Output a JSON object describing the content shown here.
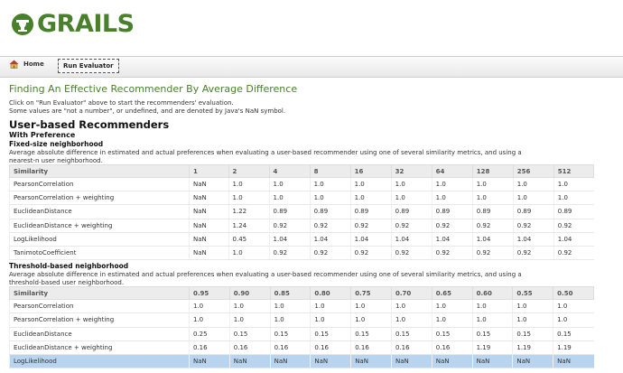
{
  "logo": {
    "text": "GRAILS"
  },
  "nav": {
    "home": "Home",
    "run_evaluator": "Run Evaluator"
  },
  "page": {
    "title": "Finding An Effective Recommender By Average Difference",
    "intro_1": "Click on \"Run Evaluator\" above to start the recommenders' evaluation.",
    "intro_2": "Some values are \"not a number\", or undefined, and are denoted by Java's NaN symbol.",
    "section_title": "User-based Recommenders",
    "subsection_title": "With Preference"
  },
  "fixed": {
    "title": "Fixed-size neighborhood",
    "desc_1": "Average absolute difference in estimated and actual preferences when evaluating a user-based recommender using one of several similarity metrics, and using a",
    "desc_2": "nearest-n user neighborhood.",
    "headers": [
      "Similarity",
      "1",
      "2",
      "4",
      "8",
      "16",
      "32",
      "64",
      "128",
      "256",
      "512"
    ],
    "rows": [
      [
        "PearsonCorrelation",
        "NaN",
        "1.0",
        "1.0",
        "1.0",
        "1.0",
        "1.0",
        "1.0",
        "1.0",
        "1.0",
        "1.0"
      ],
      [
        "PearsonCorrelation + weighting",
        "NaN",
        "1.0",
        "1.0",
        "1.0",
        "1.0",
        "1.0",
        "1.0",
        "1.0",
        "1.0",
        "1.0"
      ],
      [
        "EuclideanDistance",
        "NaN",
        "1.22",
        "0.89",
        "0.89",
        "0.89",
        "0.89",
        "0.89",
        "0.89",
        "0.89",
        "0.89"
      ],
      [
        "EuclideanDistance + weighting",
        "NaN",
        "1.24",
        "0.92",
        "0.92",
        "0.92",
        "0.92",
        "0.92",
        "0.92",
        "0.92",
        "0.92"
      ],
      [
        "LogLikelihood",
        "NaN",
        "0.45",
        "1.04",
        "1.04",
        "1.04",
        "1.04",
        "1.04",
        "1.04",
        "1.04",
        "1.04"
      ],
      [
        "TanimotoCoefficient",
        "NaN",
        "1.0",
        "0.92",
        "0.92",
        "0.92",
        "0.92",
        "0.92",
        "0.92",
        "0.92",
        "0.92"
      ]
    ]
  },
  "threshold": {
    "title": "Threshold-based neighborhood",
    "desc_1": "Average absolute difference in estimated and actual preferences when evaluating a user-based recommender using one of several similarity metrics, and using a",
    "desc_2": "threshold-based user neighborhood.",
    "headers": [
      "Similarity",
      "0.95",
      "0.90",
      "0.85",
      "0.80",
      "0.75",
      "0.70",
      "0.65",
      "0.60",
      "0.55",
      "0.50"
    ],
    "rows": [
      [
        "PearsonCorrelation",
        "1.0",
        "1.0",
        "1.0",
        "1.0",
        "1.0",
        "1.0",
        "1.0",
        "1.0",
        "1.0",
        "1.0"
      ],
      [
        "PearsonCorrelation + weighting",
        "1.0",
        "1.0",
        "1.0",
        "1.0",
        "1.0",
        "1.0",
        "1.0",
        "1.0",
        "1.0",
        "1.0"
      ],
      [
        "EuclideanDistance",
        "0.25",
        "0.15",
        "0.15",
        "0.15",
        "0.15",
        "0.15",
        "0.15",
        "0.15",
        "0.15",
        "0.15"
      ],
      [
        "EuclideanDistance + weighting",
        "0.16",
        "0.16",
        "0.16",
        "0.16",
        "0.16",
        "0.16",
        "0.16",
        "1.19",
        "1.19",
        "1.19"
      ],
      [
        "LogLikelihood",
        "NaN",
        "NaN",
        "NaN",
        "NaN",
        "NaN",
        "NaN",
        "NaN",
        "NaN",
        "NaN",
        "NaN"
      ]
    ]
  },
  "colors": {
    "brand": "#48802c",
    "row_highlight": "#b9d4ef"
  }
}
